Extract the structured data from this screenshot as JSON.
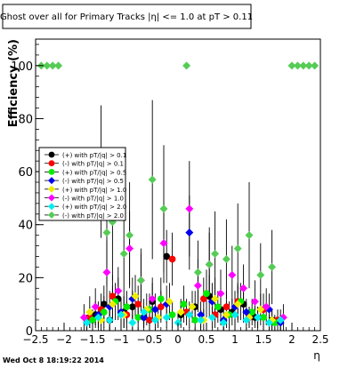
{
  "chart_data": {
    "type": "scatter",
    "title": "Ghost over all for Primary Tracks |η| <= 1.0 at pT > 0.11",
    "xlabel": "η",
    "ylabel": "Efficiency (%)",
    "xlim": [
      -2.5,
      2.5
    ],
    "ylim": [
      0,
      110
    ],
    "x_ticks": [
      -2.5,
      -2,
      -1.5,
      -1,
      -0.5,
      0,
      0.5,
      1,
      1.5,
      2,
      2.5
    ],
    "x_tick_labels": [
      "−2.5",
      "−2",
      "−1.5",
      "−1",
      "−0.5",
      "0",
      "0.5",
      "1",
      "1.5",
      "2",
      "2.5"
    ],
    "y_ticks": [
      0,
      20,
      40,
      60,
      80,
      100
    ],
    "y_tick_labels": [
      "0",
      "20",
      "40",
      "60",
      "80",
      "100"
    ],
    "grid": false,
    "legend_position": "left",
    "timestamp": "Wed Oct  8 18:19:22 2014",
    "series": [
      {
        "name": "(+) with pT/|q| > 0.1",
        "color": "#000000",
        "marker": "circle",
        "x": [
          -1.45,
          -1.3,
          -1.2,
          -1.05,
          -0.95,
          -0.8,
          -0.6,
          -0.45,
          -0.2,
          0.05,
          0.3,
          0.55,
          0.75,
          0.95,
          1.15,
          1.35,
          1.65
        ],
        "y": [
          6,
          10,
          4,
          12,
          7,
          9,
          5,
          11,
          28,
          6,
          9,
          13,
          8,
          7,
          10,
          5,
          4
        ],
        "err": [
          5,
          7,
          4,
          8,
          6,
          6,
          4,
          7,
          10,
          5,
          6,
          8,
          6,
          5,
          7,
          4,
          4
        ]
      },
      {
        "name": "(-) with pT/|q| > 0.1",
        "color": "#ff0000",
        "marker": "circle",
        "x": [
          -1.55,
          -1.35,
          -1.15,
          -0.9,
          -0.7,
          -0.5,
          -0.3,
          -0.1,
          0.15,
          0.45,
          0.65,
          0.85,
          1.05,
          1.25,
          1.5,
          1.75
        ],
        "y": [
          5,
          8,
          13,
          6,
          10,
          4,
          9,
          27,
          7,
          12,
          6,
          9,
          11,
          5,
          8,
          4
        ],
        "err": [
          4,
          6,
          8,
          5,
          7,
          4,
          6,
          10,
          5,
          8,
          5,
          6,
          7,
          4,
          6,
          4
        ]
      },
      {
        "name": "(+) with pT/|q| > 0.5",
        "color": "#00ee00",
        "marker": "circle",
        "x": [
          -1.5,
          -1.3,
          -1.1,
          -0.9,
          -0.7,
          -0.5,
          -0.3,
          -0.1,
          0.1,
          0.3,
          0.5,
          0.7,
          0.9,
          1.1,
          1.3,
          1.5,
          1.7
        ],
        "y": [
          4,
          7,
          11,
          9,
          5,
          8,
          12,
          6,
          10,
          4,
          14,
          9,
          6,
          11,
          7,
          5,
          3
        ],
        "err": [
          4,
          6,
          7,
          6,
          5,
          6,
          8,
          5,
          7,
          4,
          9,
          6,
          5,
          7,
          5,
          4,
          3
        ]
      },
      {
        "name": "(-) with pT/|q| > 0.5",
        "color": "#0000ee",
        "marker": "diamond",
        "x": [
          -1.6,
          -1.4,
          -1.2,
          -1.0,
          -0.8,
          -0.6,
          -0.4,
          -0.2,
          0.2,
          0.4,
          0.6,
          0.8,
          1.0,
          1.2,
          1.4,
          1.6,
          1.8
        ],
        "y": [
          3,
          6,
          9,
          7,
          12,
          5,
          8,
          10,
          37,
          6,
          11,
          4,
          9,
          7,
          5,
          8,
          3
        ],
        "err": [
          3,
          5,
          6,
          5,
          8,
          4,
          6,
          7,
          14,
          5,
          7,
          4,
          6,
          5,
          4,
          6,
          3
        ]
      },
      {
        "name": "(+) with pT/|q| > 1.0",
        "color": "#eeee00",
        "marker": "diamond",
        "x": [
          -1.55,
          -1.35,
          -1.15,
          -0.95,
          -0.75,
          -0.55,
          -0.35,
          -0.15,
          0.05,
          0.25,
          0.45,
          0.65,
          0.85,
          1.05,
          1.25,
          1.45,
          1.65
        ],
        "y": [
          7,
          4,
          10,
          6,
          13,
          8,
          5,
          11,
          7,
          9,
          4,
          12,
          6,
          10,
          5,
          8,
          4
        ],
        "err": [
          6,
          4,
          7,
          5,
          8,
          6,
          4,
          7,
          5,
          6,
          4,
          8,
          5,
          7,
          4,
          6,
          4
        ]
      },
      {
        "name": "(-) with pT/|q| > 1.0",
        "color": "#ff00ff",
        "marker": "diamond",
        "x": [
          -1.65,
          -1.45,
          -1.25,
          -1.05,
          -0.85,
          -0.65,
          -0.45,
          -0.25,
          0.2,
          0.35,
          0.55,
          0.75,
          0.95,
          1.15,
          1.35,
          1.55,
          1.85
        ],
        "y": [
          5,
          9,
          22,
          15,
          31,
          19,
          12,
          33,
          46,
          17,
          25,
          14,
          21,
          16,
          11,
          9,
          5
        ],
        "err": [
          5,
          7,
          12,
          9,
          14,
          10,
          8,
          15,
          18,
          10,
          12,
          9,
          11,
          9,
          8,
          7,
          5
        ]
      },
      {
        "name": "(+) with pT/|q| > 2.0",
        "color": "#00eeee",
        "marker": "diamond",
        "x": [
          -1.6,
          -1.4,
          -1.2,
          -1.0,
          -0.8,
          -0.6,
          -0.4,
          -0.2,
          0.0,
          0.2,
          0.4,
          0.6,
          0.8,
          1.0,
          1.2,
          1.4,
          1.6,
          1.8
        ],
        "y": [
          3,
          5,
          4,
          6,
          3,
          7,
          4,
          5,
          3,
          6,
          4,
          5,
          3,
          6,
          4,
          5,
          3,
          4
        ],
        "err": [
          3,
          4,
          4,
          5,
          3,
          5,
          4,
          4,
          3,
          5,
          4,
          4,
          3,
          5,
          4,
          4,
          3,
          4
        ]
      },
      {
        "name": "(-) with pT/|q| > 2.0",
        "color": "#55cc55",
        "marker": "diamond",
        "x": [
          -2.4,
          -2.3,
          -2.2,
          -2.1,
          -1.35,
          -1.25,
          -1.15,
          -0.95,
          -0.85,
          -0.65,
          -0.45,
          -0.25,
          0.15,
          0.35,
          0.55,
          0.65,
          0.85,
          1.05,
          1.25,
          1.45,
          1.65,
          2.0,
          2.1,
          2.2,
          2.3,
          2.4
        ],
        "y": [
          100,
          100,
          100,
          100,
          60,
          37,
          41,
          29,
          36,
          19,
          57,
          46,
          100,
          22,
          25,
          29,
          27,
          31,
          36,
          21,
          24,
          100,
          100,
          100,
          100,
          100
        ],
        "err": [
          0,
          0,
          0,
          0,
          25,
          20,
          22,
          18,
          20,
          12,
          30,
          24,
          0,
          12,
          14,
          16,
          15,
          17,
          20,
          12,
          14,
          0,
          0,
          0,
          0,
          0
        ]
      }
    ]
  }
}
